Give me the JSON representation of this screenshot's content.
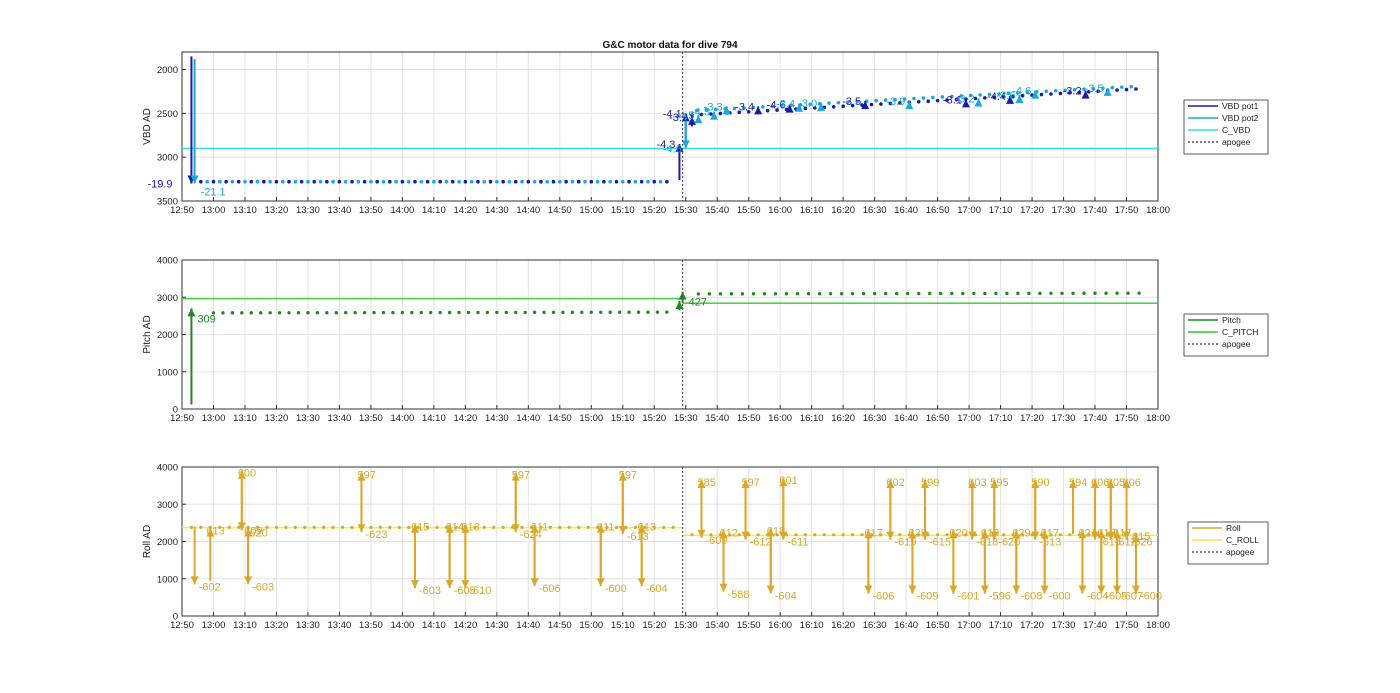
{
  "figure": {
    "title": "G&C motor data for dive 794",
    "colors": {
      "vbd_pot1": "#1a1aa6",
      "vbd_pot2": "#19a8e0",
      "c_vbd": "#33dede",
      "pitch": "#1e8a1e",
      "c_pitch": "#2ecc2e",
      "roll": "#d9a82a",
      "c_roll": "#ecec4a",
      "apogee": "#555555"
    }
  },
  "chart_data": [
    {
      "type": "line",
      "ylabel": "VBD AD",
      "y_reversed": true,
      "ylim": [
        1800,
        3500
      ],
      "yticks": [
        "2000",
        "2500",
        "3000",
        "3500"
      ],
      "xlim_minutes": [
        770,
        1080
      ],
      "xticks": [
        "12:50",
        "13:00",
        "13:10",
        "13:20",
        "13:30",
        "13:40",
        "13:50",
        "14:00",
        "14:10",
        "14:20",
        "14:30",
        "14:40",
        "14:50",
        "15:00",
        "15:10",
        "15:20",
        "15:30",
        "15:40",
        "15:50",
        "16:00",
        "16:10",
        "16:20",
        "16:30",
        "16:40",
        "16:50",
        "17:00",
        "17:10",
        "17:20",
        "17:30",
        "17:40",
        "17:50",
        "18:00"
      ],
      "grid": true,
      "legend_position": "right",
      "legend": [
        "VBD pot1",
        "VBD pot2",
        "C_VBD",
        "apogee"
      ],
      "apogee": "15:29",
      "c_value": 2900,
      "series": [
        {
          "name": "VBD pot1",
          "before": 3280,
          "after_start": 2520,
          "after_end": 2220
        },
        {
          "name": "VBD pot2",
          "before": 3280,
          "after_start": 2470,
          "after_end": 2190
        }
      ],
      "arrows": [
        {
          "series": 0,
          "t": "12:53",
          "from": 1850,
          "to": 3300,
          "label": "-19.9"
        },
        {
          "series": 1,
          "t": "12:54",
          "from": 1880,
          "to": 3300,
          "label": "-21.1"
        },
        {
          "series": 0,
          "t": "15:28",
          "from": 3260,
          "to": 2850,
          "label": "-4.3"
        },
        {
          "series": 0,
          "t": "15:30",
          "from": 2800,
          "to": 2500,
          "label": "-4.1"
        },
        {
          "series": 1,
          "t": "15:30",
          "from": 2500,
          "to": 2900,
          "label": "-4.6"
        },
        {
          "series": 0,
          "t": "15:32",
          "from": 2650,
          "to": 2540,
          "label": "-3.9"
        },
        {
          "series": 1,
          "t": "15:34",
          "from": 2600,
          "to": 2520,
          "label": "-4.5"
        },
        {
          "series": 1,
          "t": "15:39",
          "from": 2560,
          "to": 2480,
          "label": "-4.3"
        },
        {
          "series": 1,
          "t": "15:43",
          "from": 2520,
          "to": 2420,
          "label": "-3.3"
        },
        {
          "series": 0,
          "t": "15:53",
          "from": 2470,
          "to": 2420,
          "label": "-3.4"
        },
        {
          "series": 0,
          "t": "16:03",
          "from": 2460,
          "to": 2400,
          "label": "-4.6"
        },
        {
          "series": 1,
          "t": "16:06",
          "from": 2440,
          "to": 2390,
          "label": "-3.4"
        },
        {
          "series": 1,
          "t": "16:13",
          "from": 2420,
          "to": 2380,
          "label": "-3.0"
        },
        {
          "series": 0,
          "t": "16:27",
          "from": 2420,
          "to": 2360,
          "label": "-3.5"
        },
        {
          "series": 1,
          "t": "16:41",
          "from": 2400,
          "to": 2360,
          "label": "-3.9"
        },
        {
          "series": 0,
          "t": "16:59",
          "from": 2400,
          "to": 2340,
          "label": "-3.1"
        },
        {
          "series": 1,
          "t": "17:03",
          "from": 2380,
          "to": 2330,
          "label": "-3.2"
        },
        {
          "series": 0,
          "t": "17:13",
          "from": 2380,
          "to": 2300,
          "label": "-4.4"
        },
        {
          "series": 1,
          "t": "17:16",
          "from": 2370,
          "to": 2290,
          "label": "-3.6"
        },
        {
          "series": 1,
          "t": "17:21",
          "from": 2320,
          "to": 2240,
          "label": "-4.6"
        },
        {
          "series": 0,
          "t": "17:37",
          "from": 2300,
          "to": 2240,
          "label": "-3.2"
        },
        {
          "series": 1,
          "t": "17:44",
          "from": 2260,
          "to": 2210,
          "label": "-3.5"
        }
      ]
    },
    {
      "type": "line",
      "ylabel": "Pitch AD",
      "y_reversed": false,
      "ylim": [
        0,
        4000
      ],
      "yticks": [
        "0",
        "1000",
        "2000",
        "3000",
        "4000"
      ],
      "xlim_minutes": [
        770,
        1080
      ],
      "xticks": [
        "12:50",
        "13:00",
        "13:10",
        "13:20",
        "13:30",
        "13:40",
        "13:50",
        "14:00",
        "14:10",
        "14:20",
        "14:30",
        "14:40",
        "14:50",
        "15:00",
        "15:10",
        "15:20",
        "15:30",
        "15:40",
        "15:50",
        "16:00",
        "16:10",
        "16:20",
        "16:30",
        "16:40",
        "16:50",
        "17:00",
        "17:10",
        "17:20",
        "17:30",
        "17:40",
        "17:50",
        "18:00"
      ],
      "grid": true,
      "legend_position": "right",
      "legend": [
        "Pitch",
        "C_PITCH",
        "apogee"
      ],
      "apogee": "15:29",
      "c_before": 2960,
      "c_after": 2840,
      "series": [
        {
          "name": "Pitch",
          "before_start": 2580,
          "before_end": 2600,
          "after_start": 3090,
          "after_end": 3110
        }
      ],
      "arrows": [
        {
          "t": "12:53",
          "from": 120,
          "to": 2700,
          "label": "309"
        },
        {
          "t": "15:28",
          "from": 2650,
          "to": 2900,
          "label": ""
        },
        {
          "t": "15:29",
          "from": 2850,
          "to": 3150,
          "label": "427"
        }
      ]
    },
    {
      "type": "line",
      "ylabel": "Roll AD",
      "y_reversed": false,
      "ylim": [
        0,
        4000
      ],
      "yticks": [
        "0",
        "1000",
        "2000",
        "3000",
        "4000"
      ],
      "xlim_minutes": [
        770,
        1080
      ],
      "xticks": [
        "12:50",
        "13:00",
        "13:10",
        "13:20",
        "13:30",
        "13:40",
        "13:50",
        "14:00",
        "14:10",
        "14:20",
        "14:30",
        "14:40",
        "14:50",
        "15:00",
        "15:10",
        "15:20",
        "15:30",
        "15:40",
        "15:50",
        "16:00",
        "16:10",
        "16:20",
        "16:30",
        "16:40",
        "16:50",
        "17:00",
        "17:10",
        "17:20",
        "17:30",
        "17:40",
        "17:50",
        "18:00"
      ],
      "grid": true,
      "legend_position": "right",
      "legend": [
        "Roll",
        "C_ROLL",
        "apogee"
      ],
      "apogee": "15:29",
      "c_before": 2370,
      "c_after": 2170,
      "series": [
        {
          "name": "Roll",
          "before": 2380,
          "after": 2180
        }
      ],
      "arrows": [
        {
          "t": "12:54",
          "from": 2400,
          "to": 850,
          "label": "-602"
        },
        {
          "t": "12:59",
          "from": 950,
          "to": 2350,
          "label": "613"
        },
        {
          "t": "13:09",
          "from": 2300,
          "to": 3900,
          "label": "600"
        },
        {
          "t": "13:09",
          "from": 3900,
          "to": 2300,
          "label": "-620"
        },
        {
          "t": "13:11",
          "from": 950,
          "to": 2350,
          "label": "609"
        },
        {
          "t": "13:11",
          "from": 2350,
          "to": 850,
          "label": "-603"
        },
        {
          "t": "13:47",
          "from": 2300,
          "to": 3850,
          "label": "597"
        },
        {
          "t": "13:47",
          "from": 3850,
          "to": 2250,
          "label": "-623"
        },
        {
          "t": "14:04",
          "from": 900,
          "to": 2450,
          "label": "615"
        },
        {
          "t": "14:04",
          "from": 2450,
          "to": 750,
          "label": "-603"
        },
        {
          "t": "14:15",
          "from": 950,
          "to": 2450,
          "label": "614"
        },
        {
          "t": "14:15",
          "from": 2450,
          "to": 750,
          "label": "-605"
        },
        {
          "t": "14:20",
          "from": 900,
          "to": 2450,
          "label": "613"
        },
        {
          "t": "14:20",
          "from": 2450,
          "to": 750,
          "label": "-610"
        },
        {
          "t": "14:36",
          "from": 2300,
          "to": 3850,
          "label": "597"
        },
        {
          "t": "14:36",
          "from": 3850,
          "to": 2250,
          "label": "-624"
        },
        {
          "t": "14:42",
          "from": 900,
          "to": 2450,
          "label": "611"
        },
        {
          "t": "14:42",
          "from": 2450,
          "to": 800,
          "label": "-606"
        },
        {
          "t": "15:03",
          "from": 900,
          "to": 2450,
          "label": "611"
        },
        {
          "t": "15:03",
          "from": 2450,
          "to": 800,
          "label": "-600"
        },
        {
          "t": "15:10",
          "from": 2300,
          "to": 3850,
          "label": "597"
        },
        {
          "t": "15:10",
          "from": 3850,
          "to": 2200,
          "label": "-613"
        },
        {
          "t": "15:16",
          "from": 900,
          "to": 2450,
          "label": "613"
        },
        {
          "t": "15:16",
          "from": 2450,
          "to": 800,
          "label": "-604"
        },
        {
          "t": "15:35",
          "from": 2200,
          "to": 3650,
          "label": "585"
        },
        {
          "t": "15:35",
          "from": 3650,
          "to": 2100,
          "label": "-609"
        },
        {
          "t": "15:42",
          "from": 750,
          "to": 2300,
          "label": "612"
        },
        {
          "t": "15:42",
          "from": 2300,
          "to": 650,
          "label": "-588"
        },
        {
          "t": "15:49",
          "from": 2200,
          "to": 3650,
          "label": "597"
        },
        {
          "t": "15:49",
          "from": 3650,
          "to": 2050,
          "label": "-612"
        },
        {
          "t": "15:57",
          "from": 800,
          "to": 2350,
          "label": "618"
        },
        {
          "t": "15:57",
          "from": 2350,
          "to": 600,
          "label": "-604"
        },
        {
          "t": "16:01",
          "from": 2250,
          "to": 3700,
          "label": "601"
        },
        {
          "t": "16:01",
          "from": 3700,
          "to": 2050,
          "label": "-611"
        },
        {
          "t": "16:28",
          "from": 750,
          "to": 2300,
          "label": "617"
        },
        {
          "t": "16:28",
          "from": 2300,
          "to": 600,
          "label": "-606"
        },
        {
          "t": "16:35",
          "from": 2200,
          "to": 3650,
          "label": "602"
        },
        {
          "t": "16:35",
          "from": 3650,
          "to": 2050,
          "label": "-619"
        },
        {
          "t": "16:42",
          "from": 750,
          "to": 2300,
          "label": "623"
        },
        {
          "t": "16:42",
          "from": 2300,
          "to": 600,
          "label": "-609"
        },
        {
          "t": "16:46",
          "from": 2200,
          "to": 3650,
          "label": "599"
        },
        {
          "t": "16:46",
          "from": 3650,
          "to": 2050,
          "label": "-615"
        },
        {
          "t": "16:55",
          "from": 750,
          "to": 2300,
          "label": "620"
        },
        {
          "t": "16:55",
          "from": 2300,
          "to": 600,
          "label": "-601"
        },
        {
          "t": "17:01",
          "from": 2200,
          "to": 3650,
          "label": "603"
        },
        {
          "t": "17:01",
          "from": 3650,
          "to": 2050,
          "label": "-618"
        },
        {
          "t": "17:05",
          "from": 750,
          "to": 2300,
          "label": "619"
        },
        {
          "t": "17:05",
          "from": 2300,
          "to": 600,
          "label": "-596"
        },
        {
          "t": "17:08",
          "from": 2200,
          "to": 3650,
          "label": "595"
        },
        {
          "t": "17:08",
          "from": 3650,
          "to": 2050,
          "label": "-620"
        },
        {
          "t": "17:15",
          "from": 750,
          "to": 2300,
          "label": "629"
        },
        {
          "t": "17:15",
          "from": 2300,
          "to": 600,
          "label": "-608"
        },
        {
          "t": "17:21",
          "from": 2200,
          "to": 3650,
          "label": "590"
        },
        {
          "t": "17:21",
          "from": 3650,
          "to": 2050,
          "label": "-613"
        },
        {
          "t": "17:24",
          "from": 750,
          "to": 2300,
          "label": "617"
        },
        {
          "t": "17:24",
          "from": 2300,
          "to": 600,
          "label": "-600"
        },
        {
          "t": "17:33",
          "from": 2200,
          "to": 3650,
          "label": "594"
        },
        {
          "t": "17:36",
          "from": 750,
          "to": 2300,
          "label": "621"
        },
        {
          "t": "17:36",
          "from": 2300,
          "to": 600,
          "label": "-604"
        },
        {
          "t": "17:40",
          "from": 2200,
          "to": 3650,
          "label": "606"
        },
        {
          "t": "17:40",
          "from": 3650,
          "to": 2050,
          "label": "-616"
        },
        {
          "t": "17:42",
          "from": 750,
          "to": 2300,
          "label": "613"
        },
        {
          "t": "17:42",
          "from": 2300,
          "to": 600,
          "label": "-605"
        },
        {
          "t": "17:45",
          "from": 2200,
          "to": 3650,
          "label": "605"
        },
        {
          "t": "17:45",
          "from": 3650,
          "to": 2050,
          "label": "-612"
        },
        {
          "t": "17:47",
          "from": 750,
          "to": 2300,
          "label": "617"
        },
        {
          "t": "17:47",
          "from": 2300,
          "to": 600,
          "label": "-607"
        },
        {
          "t": "17:50",
          "from": 2200,
          "to": 3650,
          "label": "606"
        },
        {
          "t": "17:50",
          "from": 3650,
          "to": 2050,
          "label": "-626"
        },
        {
          "t": "17:53",
          "from": 750,
          "to": 2200,
          "label": "615"
        },
        {
          "t": "17:53",
          "from": 2200,
          "to": 600,
          "label": "-600"
        }
      ]
    }
  ]
}
